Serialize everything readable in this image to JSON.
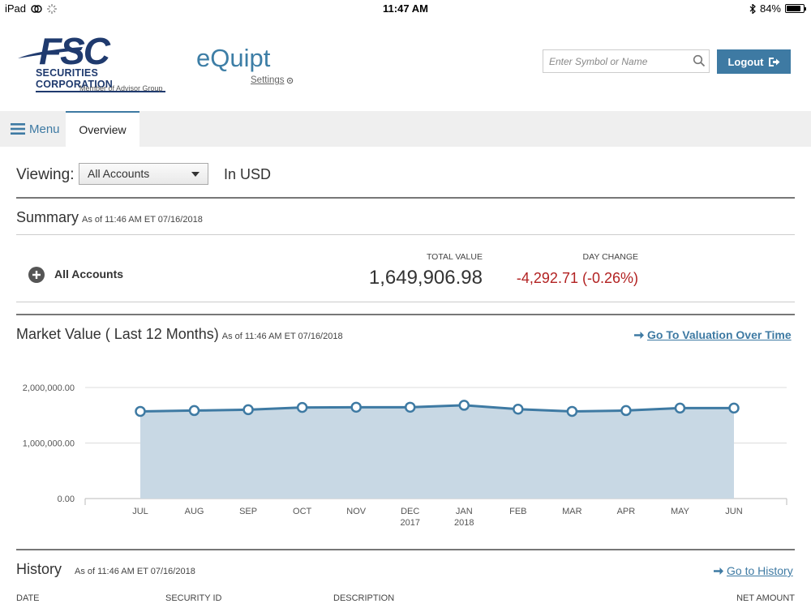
{
  "status_bar": {
    "device": "iPad",
    "time": "11:47 AM",
    "battery": "84%",
    "battery_level": 0.84
  },
  "header": {
    "logo": {
      "name": "FSC",
      "subtitle": "SECURITIES CORPORATION",
      "tagline": "Member of Advisor Group"
    },
    "brand": "eQuipt",
    "settings_label": "Settings",
    "search_placeholder": "Enter Symbol or Name",
    "logout_label": "Logout"
  },
  "nav": {
    "menu_label": "Menu",
    "active_tab": "Overview"
  },
  "viewing": {
    "label": "Viewing:",
    "selected": "All Accounts",
    "currency": "In USD"
  },
  "summary": {
    "title": "Summary",
    "as_of": "As of 11:46 AM ET 07/16/2018",
    "account_label": "All Accounts",
    "total_value_header": "TOTAL VALUE",
    "total_value": "1,649,906.98",
    "day_change_header": "DAY CHANGE",
    "day_change": "-4,292.71 (-0.26%)"
  },
  "market_value": {
    "title": "Market Value ( Last 12 Months)",
    "as_of": "As of 11:46 AM ET 07/16/2018",
    "link_label": "Go To Valuation Over Time"
  },
  "chart_data": {
    "type": "area",
    "categories": [
      "JUL",
      "AUG",
      "SEP",
      "OCT",
      "NOV",
      "DEC\n2017",
      "JAN\n2018",
      "FEB",
      "MAR",
      "APR",
      "MAY",
      "JUN"
    ],
    "values": [
      1570000,
      1585000,
      1600000,
      1640000,
      1645000,
      1645000,
      1680000,
      1610000,
      1570000,
      1585000,
      1630000,
      1630000
    ],
    "y_ticks": [
      "0.00",
      "1,000,000.00",
      "2,000,000.00"
    ],
    "ylim": [
      0,
      2000000
    ],
    "grid": true,
    "colors": {
      "line": "#3e7aa3",
      "fill": "#c8d8e4"
    }
  },
  "history": {
    "title": "History",
    "as_of": "As of 11:46 AM ET 07/16/2018",
    "link_label": "Go to History",
    "columns": [
      "DATE",
      "SECURITY ID",
      "DESCRIPTION",
      "NET AMOUNT"
    ]
  },
  "colors": {
    "accent": "#3e7aa3",
    "negative": "#b22222",
    "brand_navy": "#1f3a6e"
  }
}
